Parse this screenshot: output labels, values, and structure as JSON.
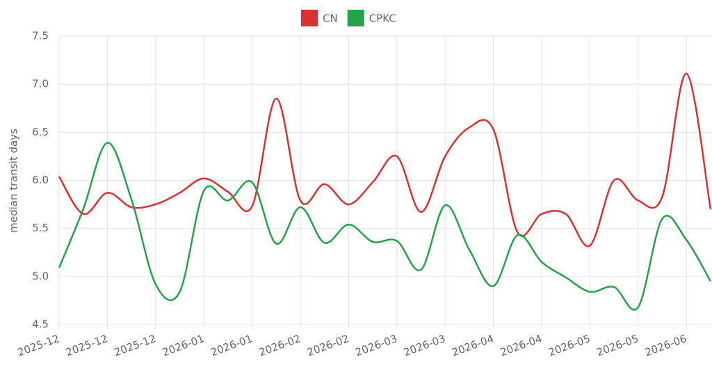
{
  "chart_data": {
    "type": "line",
    "y_label": "median transit days",
    "categories": [
      "2025-12",
      null,
      "2025-12",
      null,
      "2025-12",
      null,
      "2026-01",
      null,
      "2026-01",
      null,
      "2026-02",
      null,
      "2026-02",
      null,
      "2026-03",
      null,
      "2026-03",
      null,
      "2026-04",
      null,
      "2026-04",
      null,
      "2026-05",
      null,
      "2026-05",
      null,
      "2026-06",
      null
    ],
    "series": [
      {
        "name": "CN",
        "color": "#dc2f2f",
        "values": [
          6.04,
          5.65,
          5.87,
          5.72,
          5.75,
          5.87,
          6.02,
          5.88,
          5.73,
          6.85,
          5.79,
          5.96,
          5.75,
          5.98,
          6.25,
          5.67,
          6.25,
          6.55,
          6.53,
          5.46,
          5.65,
          5.65,
          5.32,
          6.0,
          5.79,
          5.83,
          7.11,
          5.7
        ]
      },
      {
        "name": "CPKC",
        "color": "#22a34a",
        "values": [
          5.09,
          5.7,
          6.39,
          5.8,
          4.92,
          4.84,
          5.89,
          5.79,
          5.98,
          5.34,
          5.72,
          5.35,
          5.54,
          5.36,
          5.37,
          5.07,
          5.74,
          5.28,
          4.9,
          5.43,
          5.15,
          4.99,
          4.84,
          4.89,
          4.68,
          5.6,
          5.38,
          4.95
        ]
      }
    ],
    "ylim": [
      4.5,
      7.5
    ],
    "yticks": [
      4.5,
      {
        "value": 5,
        "label": "5.0"
      },
      5.5,
      {
        "value": 6,
        "label": "6.0"
      },
      6.5,
      {
        "value": 7,
        "label": "7.0"
      },
      7.5
    ],
    "grid": true
  }
}
